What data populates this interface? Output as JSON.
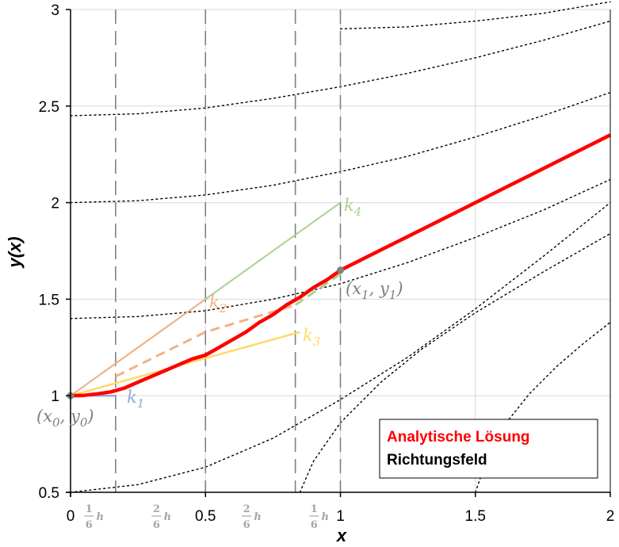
{
  "chart_data": {
    "type": "line",
    "title": "",
    "xlabel": "x",
    "ylabel": "y(x)",
    "xlim": [
      0,
      2
    ],
    "ylim": [
      0.5,
      3
    ],
    "x_ticks": [
      "0",
      "0.5",
      "1",
      "1.5",
      "2"
    ],
    "y_ticks": [
      "0.5",
      "1",
      "1.5",
      "2",
      "2.5",
      "3"
    ],
    "x_tick_values": [
      0,
      0.5,
      1,
      1.5,
      2
    ],
    "y_tick_values": [
      0.5,
      1,
      1.5,
      2,
      2.5,
      3
    ],
    "grid": true,
    "h_fraction_labels": [
      {
        "x": 0.083,
        "num": "1",
        "den": "6",
        "h": "h"
      },
      {
        "x": 0.333,
        "num": "2",
        "den": "6",
        "h": "h"
      },
      {
        "x": 0.667,
        "num": "2",
        "den": "6",
        "h": "h"
      },
      {
        "x": 0.917,
        "num": "1",
        "den": "6",
        "h": "h"
      }
    ],
    "stage_dividers_x": [
      0.167,
      0.5,
      0.833,
      1.0
    ],
    "analytic_solution": {
      "name": "Analytische Lösung",
      "color": "#ff0000",
      "x": [
        0,
        0.05,
        0.1,
        0.15,
        0.2,
        0.25,
        0.3,
        0.35,
        0.4,
        0.45,
        0.5,
        0.55,
        0.6,
        0.65,
        0.7,
        0.75,
        0.8,
        0.85,
        0.9,
        0.95,
        1.0,
        1.1,
        1.2,
        1.3,
        1.4,
        1.5,
        1.6,
        1.7,
        1.8,
        1.9,
        2.0
      ],
      "y": [
        1.0,
        1.002,
        1.01,
        1.02,
        1.04,
        1.07,
        1.1,
        1.13,
        1.16,
        1.19,
        1.21,
        1.25,
        1.29,
        1.33,
        1.38,
        1.42,
        1.47,
        1.51,
        1.56,
        1.6,
        1.65,
        1.72,
        1.79,
        1.86,
        1.93,
        2.0,
        2.07,
        2.14,
        2.21,
        2.28,
        2.35
      ]
    },
    "direction_field": {
      "name": "Richtungsfeld",
      "color": "#000000",
      "curves": [
        {
          "x": [
            0,
            0.25,
            0.5,
            0.75,
            1.0,
            1.25,
            1.5,
            1.75,
            2.0
          ],
          "y": [
            0.5,
            0.54,
            0.63,
            0.78,
            0.98,
            1.2,
            1.45,
            1.72,
            2.0
          ]
        },
        {
          "x": [
            0,
            0.25,
            0.5,
            0.75,
            1.0,
            1.25,
            1.5,
            1.75,
            2.0
          ],
          "y": [
            1.4,
            1.41,
            1.44,
            1.5,
            1.58,
            1.69,
            1.82,
            1.96,
            2.12
          ]
        },
        {
          "x": [
            0,
            0.25,
            0.5,
            0.75,
            1.0,
            1.25,
            1.5,
            1.75,
            2.0
          ],
          "y": [
            2.0,
            2.01,
            2.04,
            2.09,
            2.16,
            2.24,
            2.34,
            2.45,
            2.57
          ]
        },
        {
          "x": [
            0,
            0.25,
            0.5,
            0.75,
            1.0,
            1.25,
            1.5,
            1.75,
            2.0
          ],
          "y": [
            2.45,
            2.46,
            2.49,
            2.54,
            2.6,
            2.67,
            2.75,
            2.84,
            2.94
          ]
        },
        {
          "x": [
            1.0,
            1.25,
            1.5,
            1.75,
            2.0
          ],
          "y": [
            2.9,
            2.91,
            2.94,
            2.98,
            3.04
          ]
        },
        {
          "x": [
            0.85,
            0.9,
            1.0,
            1.15,
            1.3,
            1.5,
            1.75,
            2.0
          ],
          "y": [
            0.5,
            0.66,
            0.86,
            1.07,
            1.24,
            1.43,
            1.64,
            1.84
          ]
        },
        {
          "x": [
            1.5,
            1.55,
            1.62,
            1.7,
            1.8,
            1.9,
            2.0
          ],
          "y": [
            0.5,
            0.7,
            0.87,
            1.01,
            1.15,
            1.27,
            1.38
          ]
        }
      ]
    },
    "slopes": {
      "k1": {
        "label": "k",
        "sub": "1",
        "color": "#8fa9dc",
        "x": [
          0,
          0.167
        ],
        "y": [
          1.0,
          1.0
        ]
      },
      "k2": {
        "label": "k",
        "sub": "2",
        "color": "#f4b183",
        "x": [
          0,
          0.5
        ],
        "y": [
          1.0,
          1.5
        ],
        "dash_x": [
          0.167,
          0.5,
          0.5,
          0.833
        ],
        "dash_y": [
          1.1,
          1.33,
          1.33,
          1.47
        ]
      },
      "k3": {
        "label": "k",
        "sub": "3",
        "color": "#ffd966",
        "x": [
          0,
          0.85
        ],
        "y": [
          1.0,
          1.33
        ]
      },
      "k4": {
        "label": "k",
        "sub": "4",
        "color": "#a9d18e",
        "x": [
          0,
          1.0
        ],
        "y": [
          1.0,
          2.0
        ],
        "dash_x": [
          0.833,
          1.0
        ],
        "dash_y": [
          1.47,
          1.63
        ]
      }
    },
    "points": [
      {
        "name": "(x0, y0)",
        "label": "(x",
        "sub1": "0",
        "mid": ", y",
        "sub2": "0",
        "end": ")",
        "x": 0,
        "y": 1.0
      },
      {
        "name": "(x1, y1)",
        "label": "(x",
        "sub1": "1",
        "mid": ", y",
        "sub2": "1",
        "end": ")",
        "x": 1.0,
        "y": 1.65
      }
    ],
    "legend": {
      "placement": "bottom-right",
      "entries": [
        {
          "text": "Analytische Lösung",
          "color": "#ff0000"
        },
        {
          "text": "Richtungsfeld",
          "color": "#000000"
        }
      ]
    }
  }
}
